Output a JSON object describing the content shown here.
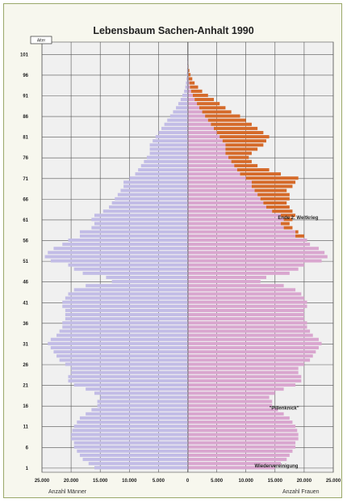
{
  "chart_data": {
    "type": "bar",
    "subtype": "population-pyramid",
    "title": "Lebensbaum Sachen-Anhalt 1990",
    "age_axis_label": "Alter",
    "age_ticks": [
      1,
      6,
      11,
      16,
      21,
      26,
      31,
      36,
      41,
      46,
      51,
      56,
      61,
      66,
      71,
      76,
      81,
      86,
      91,
      96,
      101
    ],
    "x_tick_labels_left": [
      "25.000",
      "20.000",
      "15.000",
      "10.000",
      "5.000",
      "0"
    ],
    "x_tick_labels_right": [
      "5.000",
      "10.000",
      "15.000",
      "20.000",
      "25.000"
    ],
    "xlabel_left": "Anzahl Männer",
    "xlabel_right": "Anzahl Frauen",
    "xlim": [
      -25000,
      25000
    ],
    "ylim": [
      0,
      104
    ],
    "colors": {
      "men": "#c2bce6",
      "women": "#d9a6cf",
      "women_surplus": "#d56a2a",
      "grid": "#555555",
      "background": "#f7f7ee",
      "frame": "#9aa86a"
    },
    "annotations": [
      {
        "text": "Ende 2. Weltkrieg",
        "age": 61
      },
      {
        "text": "\"Pillenknick\"",
        "age": 15
      },
      {
        "text": "Wiedervereinigung",
        "age": 1
      }
    ],
    "series": [
      {
        "name": "Männer",
        "ages": [
          1,
          2,
          3,
          4,
          5,
          6,
          7,
          8,
          9,
          10,
          11,
          12,
          13,
          14,
          15,
          16,
          17,
          18,
          19,
          20,
          21,
          22,
          23,
          24,
          25,
          26,
          27,
          28,
          29,
          30,
          31,
          32,
          33,
          34,
          35,
          36,
          37,
          38,
          39,
          40,
          41,
          42,
          43,
          44,
          45,
          46,
          47,
          48,
          49,
          50,
          51,
          52,
          53,
          54,
          55,
          56,
          57,
          58,
          59,
          60,
          61,
          62,
          63,
          64,
          65,
          66,
          67,
          68,
          69,
          70,
          71,
          72,
          73,
          74,
          75,
          76,
          77,
          78,
          79,
          80,
          81,
          82,
          83,
          84,
          85,
          86,
          87,
          88,
          89,
          90,
          91,
          92,
          93,
          94,
          95,
          96,
          97,
          98,
          99,
          100,
          101
        ],
        "values": [
          16000,
          17000,
          18000,
          18500,
          19000,
          19500,
          19500,
          20000,
          20000,
          19800,
          19500,
          19000,
          18500,
          17500,
          16500,
          15500,
          15500,
          15000,
          16000,
          17500,
          19500,
          20500,
          20500,
          20000,
          20000,
          21000,
          22000,
          22500,
          23000,
          23500,
          24000,
          23500,
          22500,
          22000,
          21500,
          21500,
          21000,
          21000,
          21000,
          21500,
          21500,
          21000,
          20500,
          19500,
          17500,
          13000,
          14000,
          18000,
          19500,
          20500,
          23500,
          24500,
          24000,
          23000,
          21500,
          20500,
          18500,
          18500,
          16500,
          16000,
          16500,
          16000,
          14500,
          13500,
          13000,
          12500,
          12000,
          11500,
          11000,
          11000,
          10000,
          9000,
          8500,
          8000,
          7500,
          7000,
          6500,
          6500,
          6500,
          6000,
          5500,
          5000,
          4500,
          4000,
          3500,
          3000,
          2500,
          2000,
          1600,
          1200,
          900,
          600,
          400,
          300,
          200,
          150,
          100,
          60,
          40,
          20,
          10
        ]
      },
      {
        "name": "Frauen",
        "ages": [
          1,
          2,
          3,
          4,
          5,
          6,
          7,
          8,
          9,
          10,
          11,
          12,
          13,
          14,
          15,
          16,
          17,
          18,
          19,
          20,
          21,
          22,
          23,
          24,
          25,
          26,
          27,
          28,
          29,
          30,
          31,
          32,
          33,
          34,
          35,
          36,
          37,
          38,
          39,
          40,
          41,
          42,
          43,
          44,
          45,
          46,
          47,
          48,
          49,
          50,
          51,
          52,
          53,
          54,
          55,
          56,
          57,
          58,
          59,
          60,
          61,
          62,
          63,
          64,
          65,
          66,
          67,
          68,
          69,
          70,
          71,
          72,
          73,
          74,
          75,
          76,
          77,
          78,
          79,
          80,
          81,
          82,
          83,
          84,
          85,
          86,
          87,
          88,
          89,
          90,
          91,
          92,
          93,
          94,
          95,
          96,
          97,
          98,
          99,
          100,
          101
        ],
        "values": [
          15000,
          16000,
          17000,
          17500,
          18000,
          18500,
          18500,
          19000,
          19000,
          18800,
          18500,
          18000,
          17500,
          16500,
          15500,
          14500,
          14500,
          14000,
          15000,
          16500,
          18500,
          19500,
          19500,
          19000,
          19000,
          20000,
          21000,
          21500,
          22000,
          22500,
          23000,
          22500,
          21500,
          21000,
          20500,
          20500,
          20000,
          20000,
          20000,
          20500,
          20500,
          20000,
          19500,
          18500,
          16500,
          12500,
          13500,
          17500,
          19000,
          20000,
          23000,
          24000,
          23500,
          22500,
          21000,
          20500,
          20000,
          19000,
          18000,
          17500,
          18000,
          18500,
          18000,
          17500,
          17000,
          17500,
          17500,
          17000,
          18000,
          18500,
          19000,
          16000,
          14000,
          12000,
          11000,
          10500,
          11000,
          12000,
          13000,
          13500,
          14000,
          13000,
          12000,
          11000,
          10000,
          9000,
          7500,
          6500,
          5500,
          4500,
          3500,
          2500,
          1800,
          1200,
          800,
          500,
          300,
          150,
          80,
          40,
          20
        ]
      }
    ]
  }
}
